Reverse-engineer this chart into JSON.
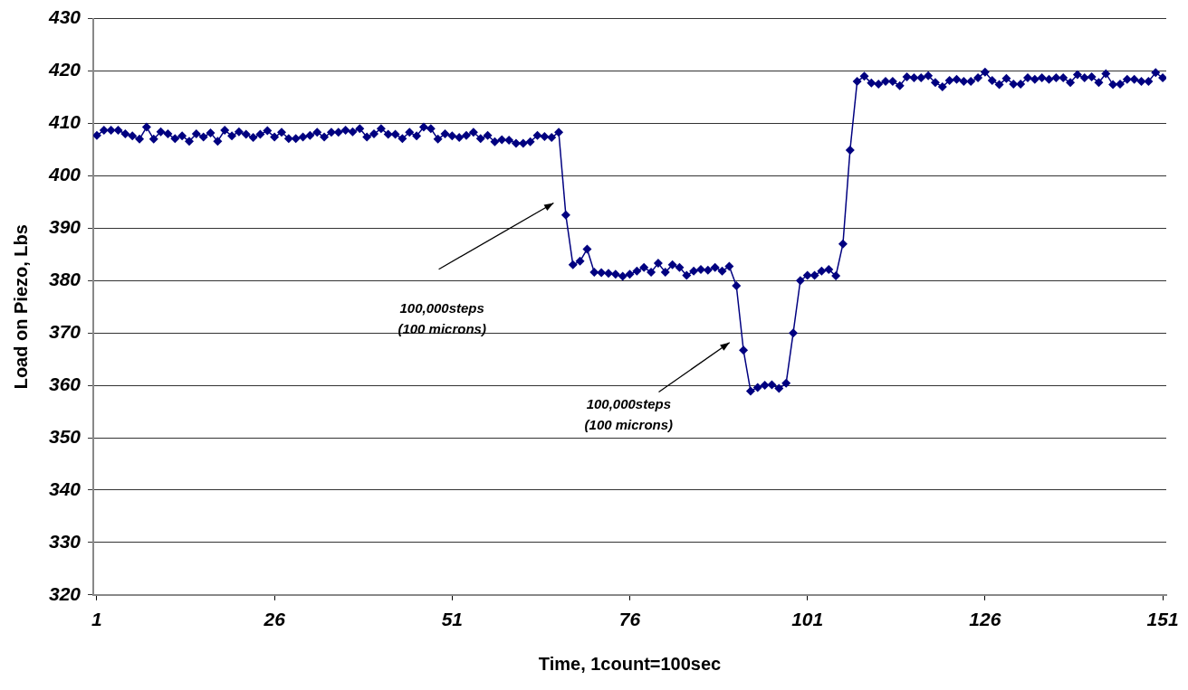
{
  "chart_data": {
    "type": "line",
    "xlabel": "Time, 1count=100sec",
    "ylabel": "Load on Piezo, Lbs",
    "x": [
      1,
      2,
      3,
      4,
      5,
      6,
      7,
      8,
      9,
      10,
      11,
      12,
      13,
      14,
      15,
      16,
      17,
      18,
      19,
      20,
      21,
      22,
      23,
      24,
      25,
      26,
      27,
      28,
      29,
      30,
      31,
      32,
      33,
      34,
      35,
      36,
      37,
      38,
      39,
      40,
      41,
      42,
      43,
      44,
      45,
      46,
      47,
      48,
      49,
      50,
      51,
      52,
      53,
      54,
      55,
      56,
      57,
      58,
      59,
      60,
      61,
      62,
      63,
      64,
      65,
      66,
      67,
      68,
      69,
      70,
      71,
      72,
      73,
      74,
      75,
      76,
      77,
      78,
      79,
      80,
      81,
      82,
      83,
      84,
      85,
      86,
      87,
      88,
      89,
      90,
      91,
      92,
      93,
      94,
      95,
      96,
      97,
      98,
      99,
      100,
      101,
      102,
      103,
      104,
      105,
      106,
      107,
      108,
      109,
      110,
      111,
      112,
      113,
      114,
      115,
      116,
      117,
      118,
      119,
      120,
      121,
      122,
      123,
      124,
      125,
      126,
      127,
      128,
      129,
      130,
      131,
      132,
      133,
      134,
      135,
      136,
      137,
      138,
      139,
      140,
      141,
      142,
      143,
      144,
      145,
      146,
      147,
      148,
      149,
      150,
      151
    ],
    "series": [
      {
        "color": "#000080",
        "values": [
          407.7,
          408.7,
          408.7,
          408.7,
          408,
          407.6,
          407,
          409.3,
          407,
          408.4,
          408,
          407.1,
          407.6,
          406.6,
          408,
          407.4,
          408.2,
          406.6,
          408.7,
          407.6,
          408.4,
          407.9,
          407.3,
          407.9,
          408.6,
          407.4,
          408.3,
          407.1,
          407.1,
          407.4,
          407.7,
          408.3,
          407.4,
          408.3,
          408.3,
          408.7,
          408.4,
          409,
          407.4,
          408,
          409,
          407.9,
          407.9,
          407.1,
          408.3,
          407.6,
          409.3,
          409,
          407,
          408,
          407.6,
          407.3,
          407.7,
          408.3,
          407.1,
          407.7,
          406.5,
          406.9,
          406.8,
          406.2,
          406.2,
          406.5,
          407.7,
          407.5,
          407.3,
          408.3,
          392.5,
          383,
          383.7,
          386,
          381.6,
          381.5,
          381.4,
          381.2,
          380.8,
          381.2,
          381.8,
          382.5,
          381.6,
          383.3,
          381.6,
          383,
          382.5,
          381,
          381.8,
          382.1,
          382,
          382.5,
          381.8,
          382.7,
          379,
          366.7,
          358.9,
          359.6,
          360,
          360.1,
          359.4,
          360.4,
          370,
          380,
          381,
          381,
          381.8,
          382.1,
          380.9,
          387,
          404.9,
          418,
          419,
          417.7,
          417.5,
          418,
          418,
          417.2,
          418.9,
          418.7,
          418.7,
          419.1,
          417.8,
          417,
          418.2,
          418.4,
          418,
          418,
          418.7,
          419.8,
          418.2,
          417.4,
          418.6,
          417.5,
          417.5,
          418.7,
          418.4,
          418.7,
          418.4,
          418.7,
          418.7,
          417.8,
          419.3,
          418.7,
          418.9,
          417.8,
          419.5,
          417.4,
          417.5,
          418.4,
          418.4,
          418,
          418,
          419.7,
          418.7
        ]
      }
    ],
    "xlim": [
      0.5,
      151.5
    ],
    "xticks": [
      1,
      26,
      51,
      76,
      101,
      126,
      151
    ],
    "ylim": [
      320,
      430
    ],
    "yticks": [
      320,
      330,
      340,
      350,
      360,
      370,
      380,
      390,
      400,
      410,
      420,
      430
    ],
    "grid": "y",
    "legend": false,
    "marker": "diamond",
    "line_style": "solid",
    "annotations": [
      "100,000steps\n(100 microns)",
      "100,000steps\n(100 microns)"
    ]
  }
}
